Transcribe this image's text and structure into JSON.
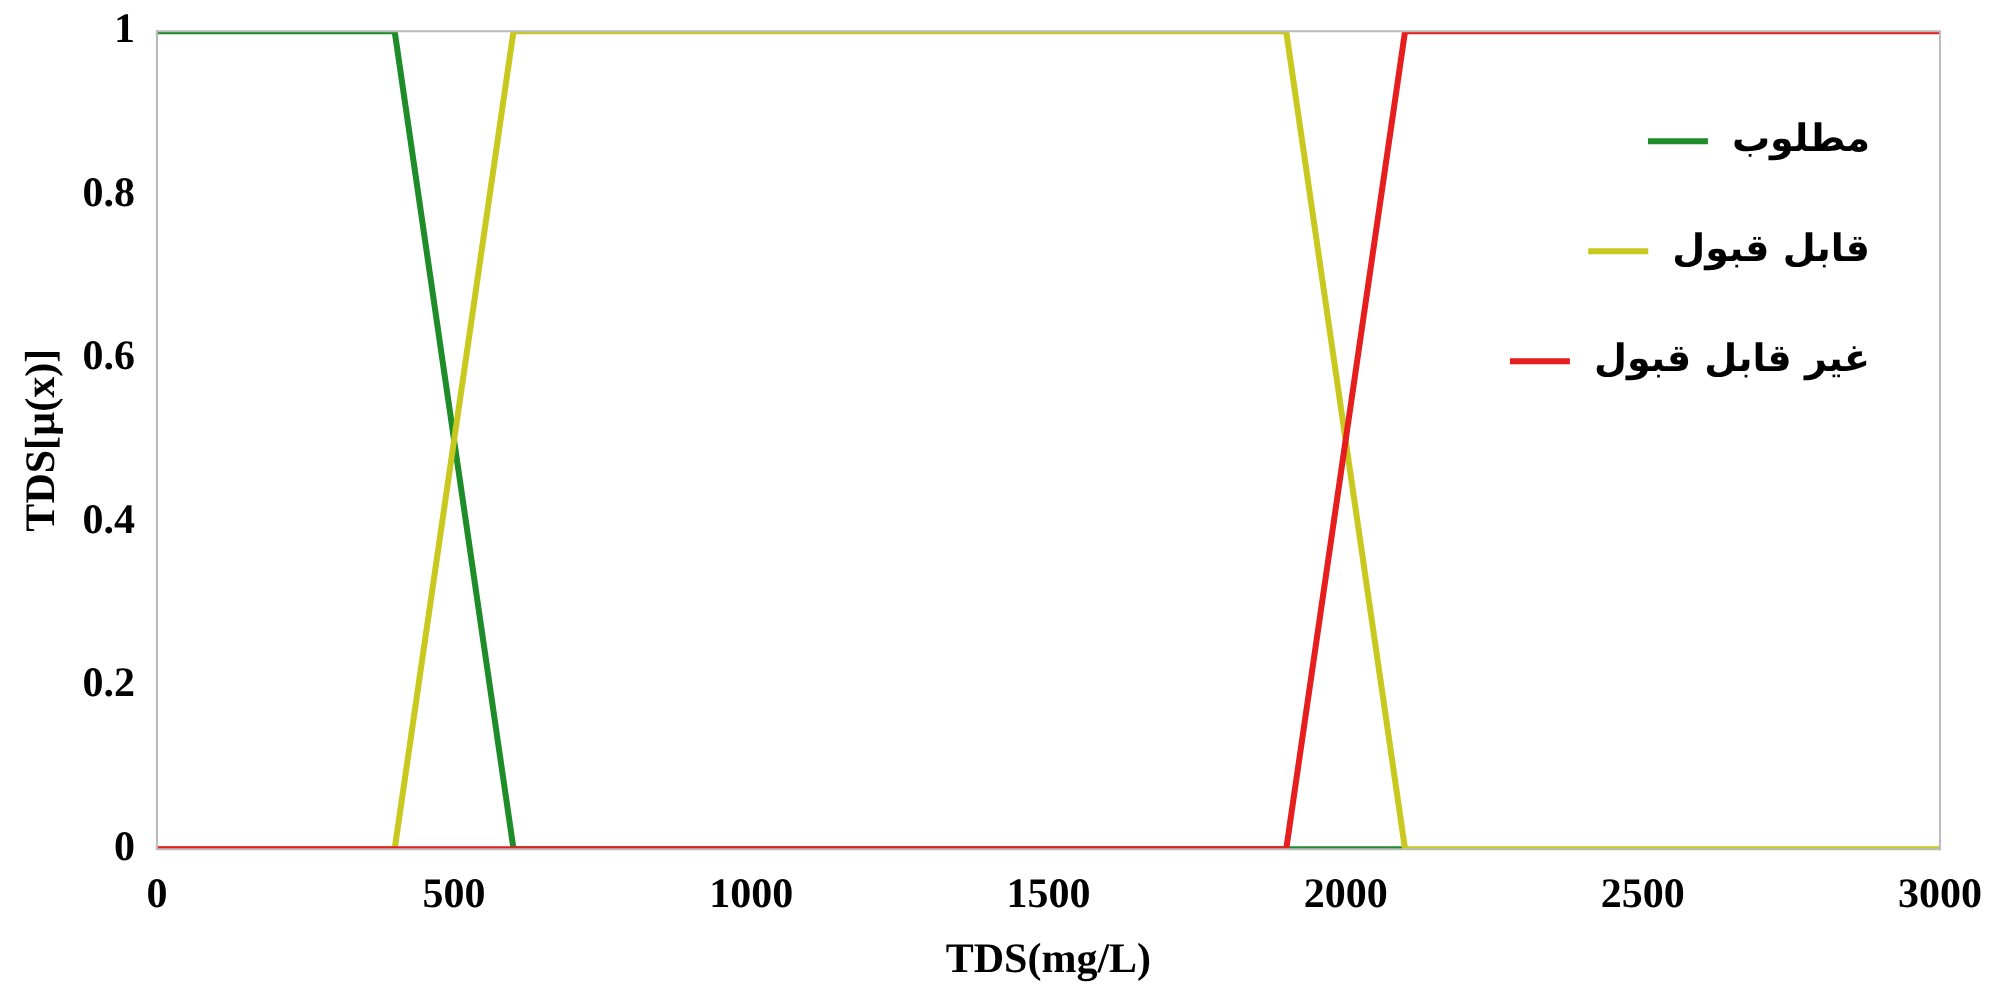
{
  "chart_data": {
    "type": "line",
    "xlabel": "TDS(mg/L)",
    "ylabel": "TDS[µ(x)]",
    "xlim": [
      0,
      3000
    ],
    "xticks": [
      0,
      500,
      1000,
      1500,
      2000,
      2500,
      3000
    ],
    "ylim": [
      0,
      1
    ],
    "yticks": [
      0,
      0.2,
      0.4,
      0.6,
      0.8,
      1
    ],
    "grid": false,
    "legend": "top right",
    "marker": "none",
    "line_style": "solid",
    "series": [
      {
        "name": "مطلوب",
        "color": "#1e8c28",
        "x": [
          0,
          400,
          600,
          1900,
          2100
        ],
        "values": [
          1,
          1,
          0,
          0,
          0
        ]
      },
      {
        "name": "قابل قبول",
        "color": "#c8c81e",
        "x": [
          0,
          400,
          600,
          1900,
          2100,
          3000
        ],
        "values": [
          0,
          0,
          1,
          1,
          0,
          0
        ]
      },
      {
        "name": "غیر قابل قبول",
        "color": "#e61e1e",
        "x": [
          0,
          1900,
          2100,
          3000
        ],
        "values": [
          0,
          0,
          1,
          1
        ]
      }
    ]
  }
}
